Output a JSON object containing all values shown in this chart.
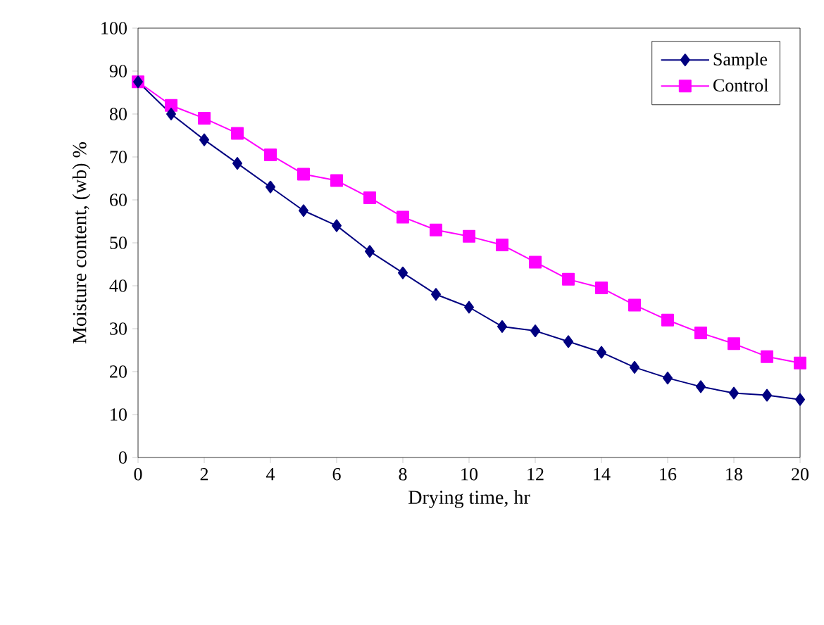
{
  "chart_data": {
    "type": "line",
    "xlabel": "Drying time, hr",
    "ylabel": "Moisture content, (wb) %",
    "x": [
      0,
      1,
      2,
      3,
      4,
      5,
      6,
      7,
      8,
      9,
      10,
      11,
      12,
      13,
      14,
      15,
      16,
      17,
      18,
      19,
      20
    ],
    "series": [
      {
        "name": "Sample",
        "color": "#000080",
        "marker": "diamond",
        "values": [
          87.5,
          80,
          74,
          68.5,
          63,
          57.5,
          54,
          48,
          43,
          38,
          35,
          30.5,
          29.5,
          27,
          24.5,
          21,
          18.5,
          16.5,
          15,
          14.5,
          13.5
        ]
      },
      {
        "name": "Control",
        "color": "#ff00ff",
        "marker": "square",
        "values": [
          87.5,
          82,
          79,
          75.5,
          70.5,
          66,
          64.5,
          60.5,
          56,
          53,
          51.5,
          49.5,
          45.5,
          41.5,
          39.5,
          35.5,
          32,
          29,
          26.5,
          23.5,
          22
        ]
      }
    ],
    "xlim": [
      0,
      20
    ],
    "xticks": [
      0,
      2,
      4,
      6,
      8,
      10,
      12,
      14,
      16,
      18,
      20
    ],
    "ylim": [
      0,
      100
    ],
    "yticks": [
      0,
      10,
      20,
      30,
      40,
      50,
      60,
      70,
      80,
      90,
      100
    ],
    "legend": "top right",
    "grid": false,
    "line_style": "solid"
  }
}
